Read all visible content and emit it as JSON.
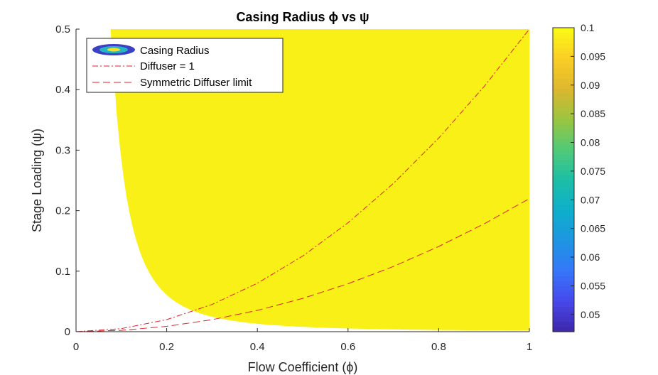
{
  "chart_data": {
    "type": "contour",
    "title": "Casing Radius ϕ vs ψ",
    "xlabel": "Flow Coefficient (ϕ)",
    "ylabel": "Stage Loading (ψ)",
    "xlim": [
      0,
      1
    ],
    "ylim": [
      0,
      0.5
    ],
    "xticks": [
      "0",
      "0.2",
      "0.4",
      "0.6",
      "0.8",
      "1"
    ],
    "yticks": [
      "0",
      "0.1",
      "0.2",
      "0.3",
      "0.4",
      "0.5"
    ],
    "grid": false,
    "legend_position": "top-left",
    "contour_levels": [
      0.0475,
      0.05,
      0.0525,
      0.055,
      0.0575,
      0.06,
      0.0625,
      0.065,
      0.0675,
      0.07,
      0.0725,
      0.075,
      0.0775,
      0.08,
      0.0825,
      0.085,
      0.0875,
      0.09,
      0.0925,
      0.095,
      0.0975,
      0.1
    ],
    "colorbar": {
      "colormap": "parula",
      "range": [
        0.047,
        0.1
      ],
      "ticks": [
        "0.05",
        "0.055",
        "0.06",
        "0.065",
        "0.07",
        "0.075",
        "0.08",
        "0.085",
        "0.09",
        "0.095",
        "0.1"
      ]
    },
    "series": [
      {
        "name": "Casing Radius",
        "kind": "filled-contour"
      },
      {
        "name": "Diffuser = 1",
        "kind": "line",
        "style": "dash-dot",
        "color": "#e0202a",
        "x": [
          0,
          0.1,
          0.2,
          0.3,
          0.4,
          0.5,
          0.6,
          0.7,
          0.8,
          0.9,
          1.0
        ],
        "y": [
          0,
          0.005,
          0.02,
          0.045,
          0.08,
          0.125,
          0.18,
          0.245,
          0.32,
          0.405,
          0.5
        ]
      },
      {
        "name": "Symmetric Diffuser limit",
        "kind": "line",
        "style": "dash",
        "color": "#e0202a",
        "x": [
          0,
          0.1,
          0.2,
          0.3,
          0.4,
          0.5,
          0.6,
          0.7,
          0.8,
          0.9,
          1.0
        ],
        "y": [
          0,
          0.0022,
          0.0088,
          0.0198,
          0.0352,
          0.055,
          0.0792,
          0.1078,
          0.1408,
          0.1782,
          0.22
        ]
      }
    ]
  }
}
